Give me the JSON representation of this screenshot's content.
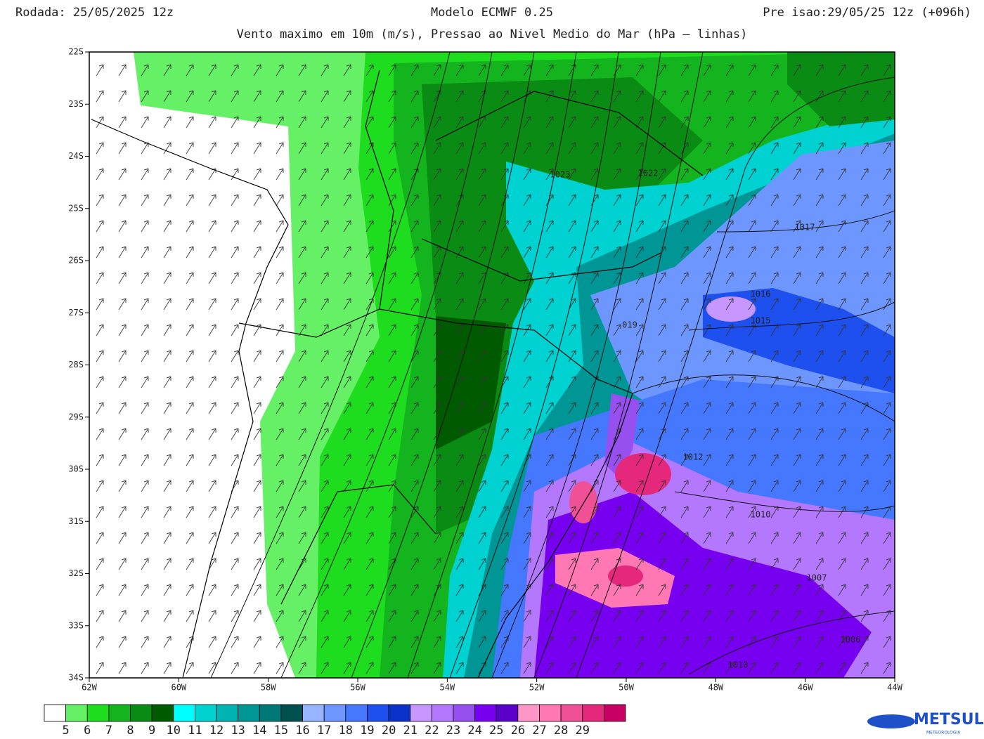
{
  "header": {
    "left": "Rodada: 25/05/2025 12z",
    "center": "Modelo ECMWF 0.25",
    "right": "Pre isao:29/05/25 12z (+096h)",
    "subtitle": "Vento maximo em 10m (m/s), Pressao ao Nivel Medio do Mar (hPa – linhas)"
  },
  "map": {
    "lat_labels": [
      "22S",
      "23S",
      "24S",
      "25S",
      "26S",
      "27S",
      "28S",
      "29S",
      "30S",
      "31S",
      "32S",
      "33S",
      "34S"
    ],
    "lon_labels": [
      "62W",
      "60W",
      "58W",
      "56W",
      "54W",
      "52W",
      "50W",
      "48W",
      "46W",
      "44W"
    ],
    "isobar_labels": [
      "1023",
      "1022",
      "1017",
      "1016",
      "1015",
      "019",
      "1012",
      "1010",
      "1007",
      "1006",
      "1010"
    ]
  },
  "colorbar": {
    "colors": [
      "#ffffff",
      "#66f066",
      "#1edc1e",
      "#14b41e",
      "#0a8c14",
      "#005a00",
      "#00ffff",
      "#00d2d2",
      "#00b4b4",
      "#009696",
      "#007878",
      "#005050",
      "#96b4ff",
      "#6e96ff",
      "#4678ff",
      "#1e50f0",
      "#0a32c8",
      "#c896ff",
      "#b478ff",
      "#9650f0",
      "#7800f0",
      "#5a00c8",
      "#ff96c8",
      "#ff78b4",
      "#f05096",
      "#e6287d",
      "#c80064"
    ],
    "levels": [
      5,
      6,
      7,
      8,
      9,
      10,
      11,
      12,
      13,
      14,
      15,
      16,
      17,
      18,
      19,
      20,
      21,
      22,
      23,
      24,
      25,
      26,
      27,
      28,
      29
    ]
  },
  "logo": {
    "name": "METSUL",
    "tagline": "METEOROLOGIA"
  }
}
